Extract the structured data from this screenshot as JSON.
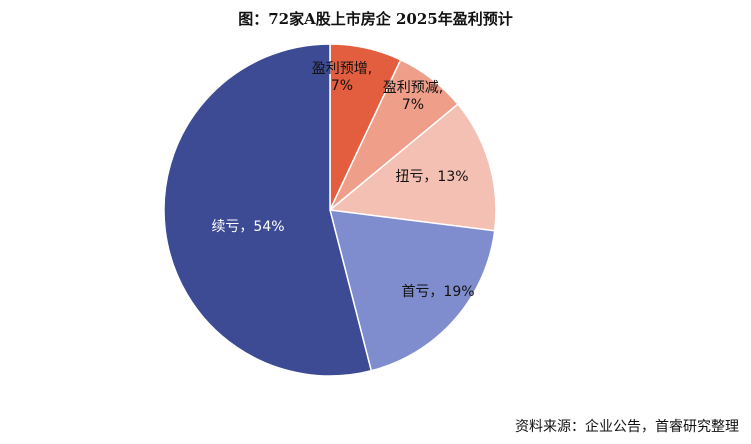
{
  "chart_data": {
    "type": "pie",
    "title": "图：72家A股上市房企 2025年盈利预计",
    "source": "资料来源：企业公告，首睿研究整理",
    "start_angle_deg": 0,
    "direction": "clockwise",
    "slices": [
      {
        "name": "盈利预增",
        "label": "盈利预增,\n7%",
        "value": 7,
        "color": "#E35E3E",
        "label_color": "#111111"
      },
      {
        "name": "盈利预减",
        "label": "盈利预减,\n7%",
        "value": 7,
        "color": "#EE9E89",
        "label_color": "#111111"
      },
      {
        "name": "扭亏",
        "label": "扭亏，13%",
        "value": 13,
        "color": "#F4C0B3",
        "label_color": "#111111"
      },
      {
        "name": "首亏",
        "label": "首亏，19%",
        "value": 19,
        "color": "#7F8DCE",
        "label_color": "#111111"
      },
      {
        "name": "续亏",
        "label": "续亏，54%",
        "value": 54,
        "color": "#3D4A94",
        "label_color": "#ffffff"
      }
    ]
  }
}
